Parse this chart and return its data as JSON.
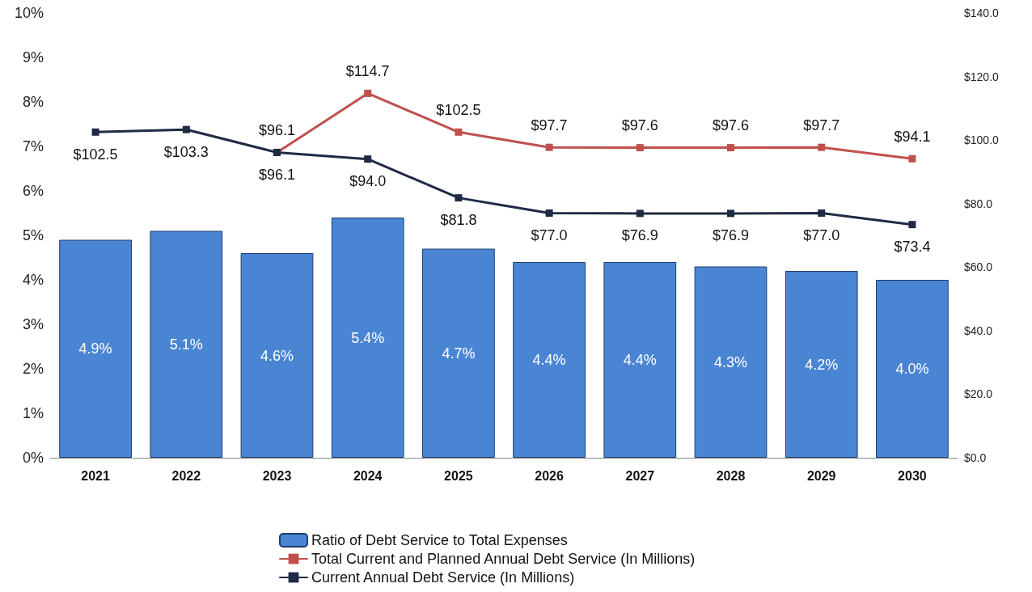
{
  "chart_data": {
    "type": "bar",
    "categories": [
      "2021",
      "2022",
      "2023",
      "2024",
      "2025",
      "2026",
      "2027",
      "2028",
      "2029",
      "2030"
    ],
    "series": [
      {
        "name": "Ratio of Debt Service to Total Expenses",
        "color": "#4a85d3",
        "values": [
          4.9,
          5.1,
          4.6,
          5.4,
          4.7,
          4.4,
          4.4,
          4.3,
          4.2,
          4.0
        ],
        "value_labels": [
          "4.9%",
          "5.1%",
          "4.6%",
          "5.4%",
          "4.7%",
          "4.4%",
          "4.4%",
          "4.3%",
          "4.2%",
          "4.0%"
        ]
      },
      {
        "name": "Total Current and Planned Annual Debt Service (In Millions)",
        "type": "line",
        "axis": "y2",
        "color": "#c0504d",
        "values": [
          null,
          null,
          96.1,
          114.7,
          102.5,
          97.7,
          97.6,
          97.6,
          97.7,
          94.1
        ],
        "value_labels": [
          null,
          null,
          "$96.1",
          "$114.7",
          "$102.5",
          "$97.7",
          "$97.6",
          "$97.6",
          "$97.7",
          "$94.1"
        ]
      },
      {
        "name": "Current Annual Debt Service (In Millions)",
        "type": "line",
        "axis": "y2",
        "color": "#1f2b44",
        "values": [
          102.5,
          103.3,
          96.1,
          94.0,
          81.8,
          77.0,
          76.9,
          76.9,
          77.0,
          73.4
        ],
        "value_labels": [
          "$102.5",
          "$103.3",
          "$96.1",
          "$94.0",
          "$81.8",
          "$77.0",
          "$76.9",
          "$76.9",
          "$77.0",
          "$73.4"
        ]
      }
    ],
    "ylim": [
      0,
      10
    ],
    "yticks": [
      {
        "value": 0,
        "label": "0%"
      },
      {
        "value": 1,
        "label": "1%"
      },
      {
        "value": 2,
        "label": "2%"
      },
      {
        "value": 3,
        "label": "3%"
      },
      {
        "value": 4,
        "label": "4%"
      },
      {
        "value": 5,
        "label": "5%"
      },
      {
        "value": 6,
        "label": "6%"
      },
      {
        "value": 7,
        "label": "7%"
      },
      {
        "value": 8,
        "label": "8%"
      },
      {
        "value": 9,
        "label": "9%"
      },
      {
        "value": 10,
        "label": "10%"
      }
    ],
    "y2lim": [
      0,
      140
    ],
    "y2ticks": [
      {
        "value": 0,
        "label": "$0.0"
      },
      {
        "value": 20,
        "label": "$20.0"
      },
      {
        "value": 40,
        "label": "$40.0"
      },
      {
        "value": 60,
        "label": "$60.0"
      },
      {
        "value": 80,
        "label": "$80.0"
      },
      {
        "value": 100,
        "label": "$100.0"
      },
      {
        "value": 120,
        "label": "$120.0"
      },
      {
        "value": 140,
        "label": "$140.0"
      }
    ],
    "legend": "bottom",
    "marker": "square",
    "grid": false
  }
}
